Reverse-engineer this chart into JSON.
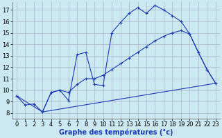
{
  "title": "Graphe des températures (°c)",
  "background_color": "#cce8f0",
  "grid_color": "#aab8cc",
  "line_color": "#1a3ab5",
  "xlim": [
    -0.5,
    23.5
  ],
  "ylim": [
    7.5,
    17.7
  ],
  "xticks": [
    0,
    1,
    2,
    3,
    4,
    5,
    6,
    7,
    8,
    9,
    10,
    11,
    12,
    13,
    14,
    15,
    16,
    17,
    18,
    19,
    20,
    21,
    22,
    23
  ],
  "yticks": [
    8,
    9,
    10,
    11,
    12,
    13,
    14,
    15,
    16,
    17
  ],
  "series1_x": [
    0,
    1,
    2,
    3,
    4,
    5,
    6,
    7,
    8,
    9,
    10,
    11,
    12,
    13,
    14,
    15,
    16,
    17,
    18,
    19,
    20,
    21,
    22,
    23
  ],
  "series1_y": [
    9.5,
    8.7,
    8.8,
    8.1,
    9.8,
    10.0,
    9.1,
    13.1,
    13.3,
    10.5,
    10.4,
    15.0,
    15.9,
    16.7,
    17.2,
    16.7,
    17.4,
    17.0,
    16.5,
    16.0,
    14.9,
    13.3,
    11.8,
    10.6
  ],
  "series2_x": [
    0,
    3,
    4,
    5,
    6,
    7,
    8,
    9,
    10,
    11,
    12,
    13,
    14,
    15,
    16,
    17,
    18,
    19,
    20,
    21,
    22,
    23
  ],
  "series2_y": [
    9.5,
    8.1,
    9.8,
    10.0,
    9.8,
    10.5,
    11.0,
    11.0,
    11.3,
    11.8,
    12.3,
    12.8,
    13.3,
    13.8,
    14.3,
    14.7,
    15.0,
    15.2,
    14.9,
    13.3,
    11.8,
    10.6
  ],
  "series3_x": [
    3,
    23
  ],
  "series3_y": [
    8.1,
    10.6
  ],
  "xlabel_fontsize": 7,
  "tick_fontsize": 6
}
